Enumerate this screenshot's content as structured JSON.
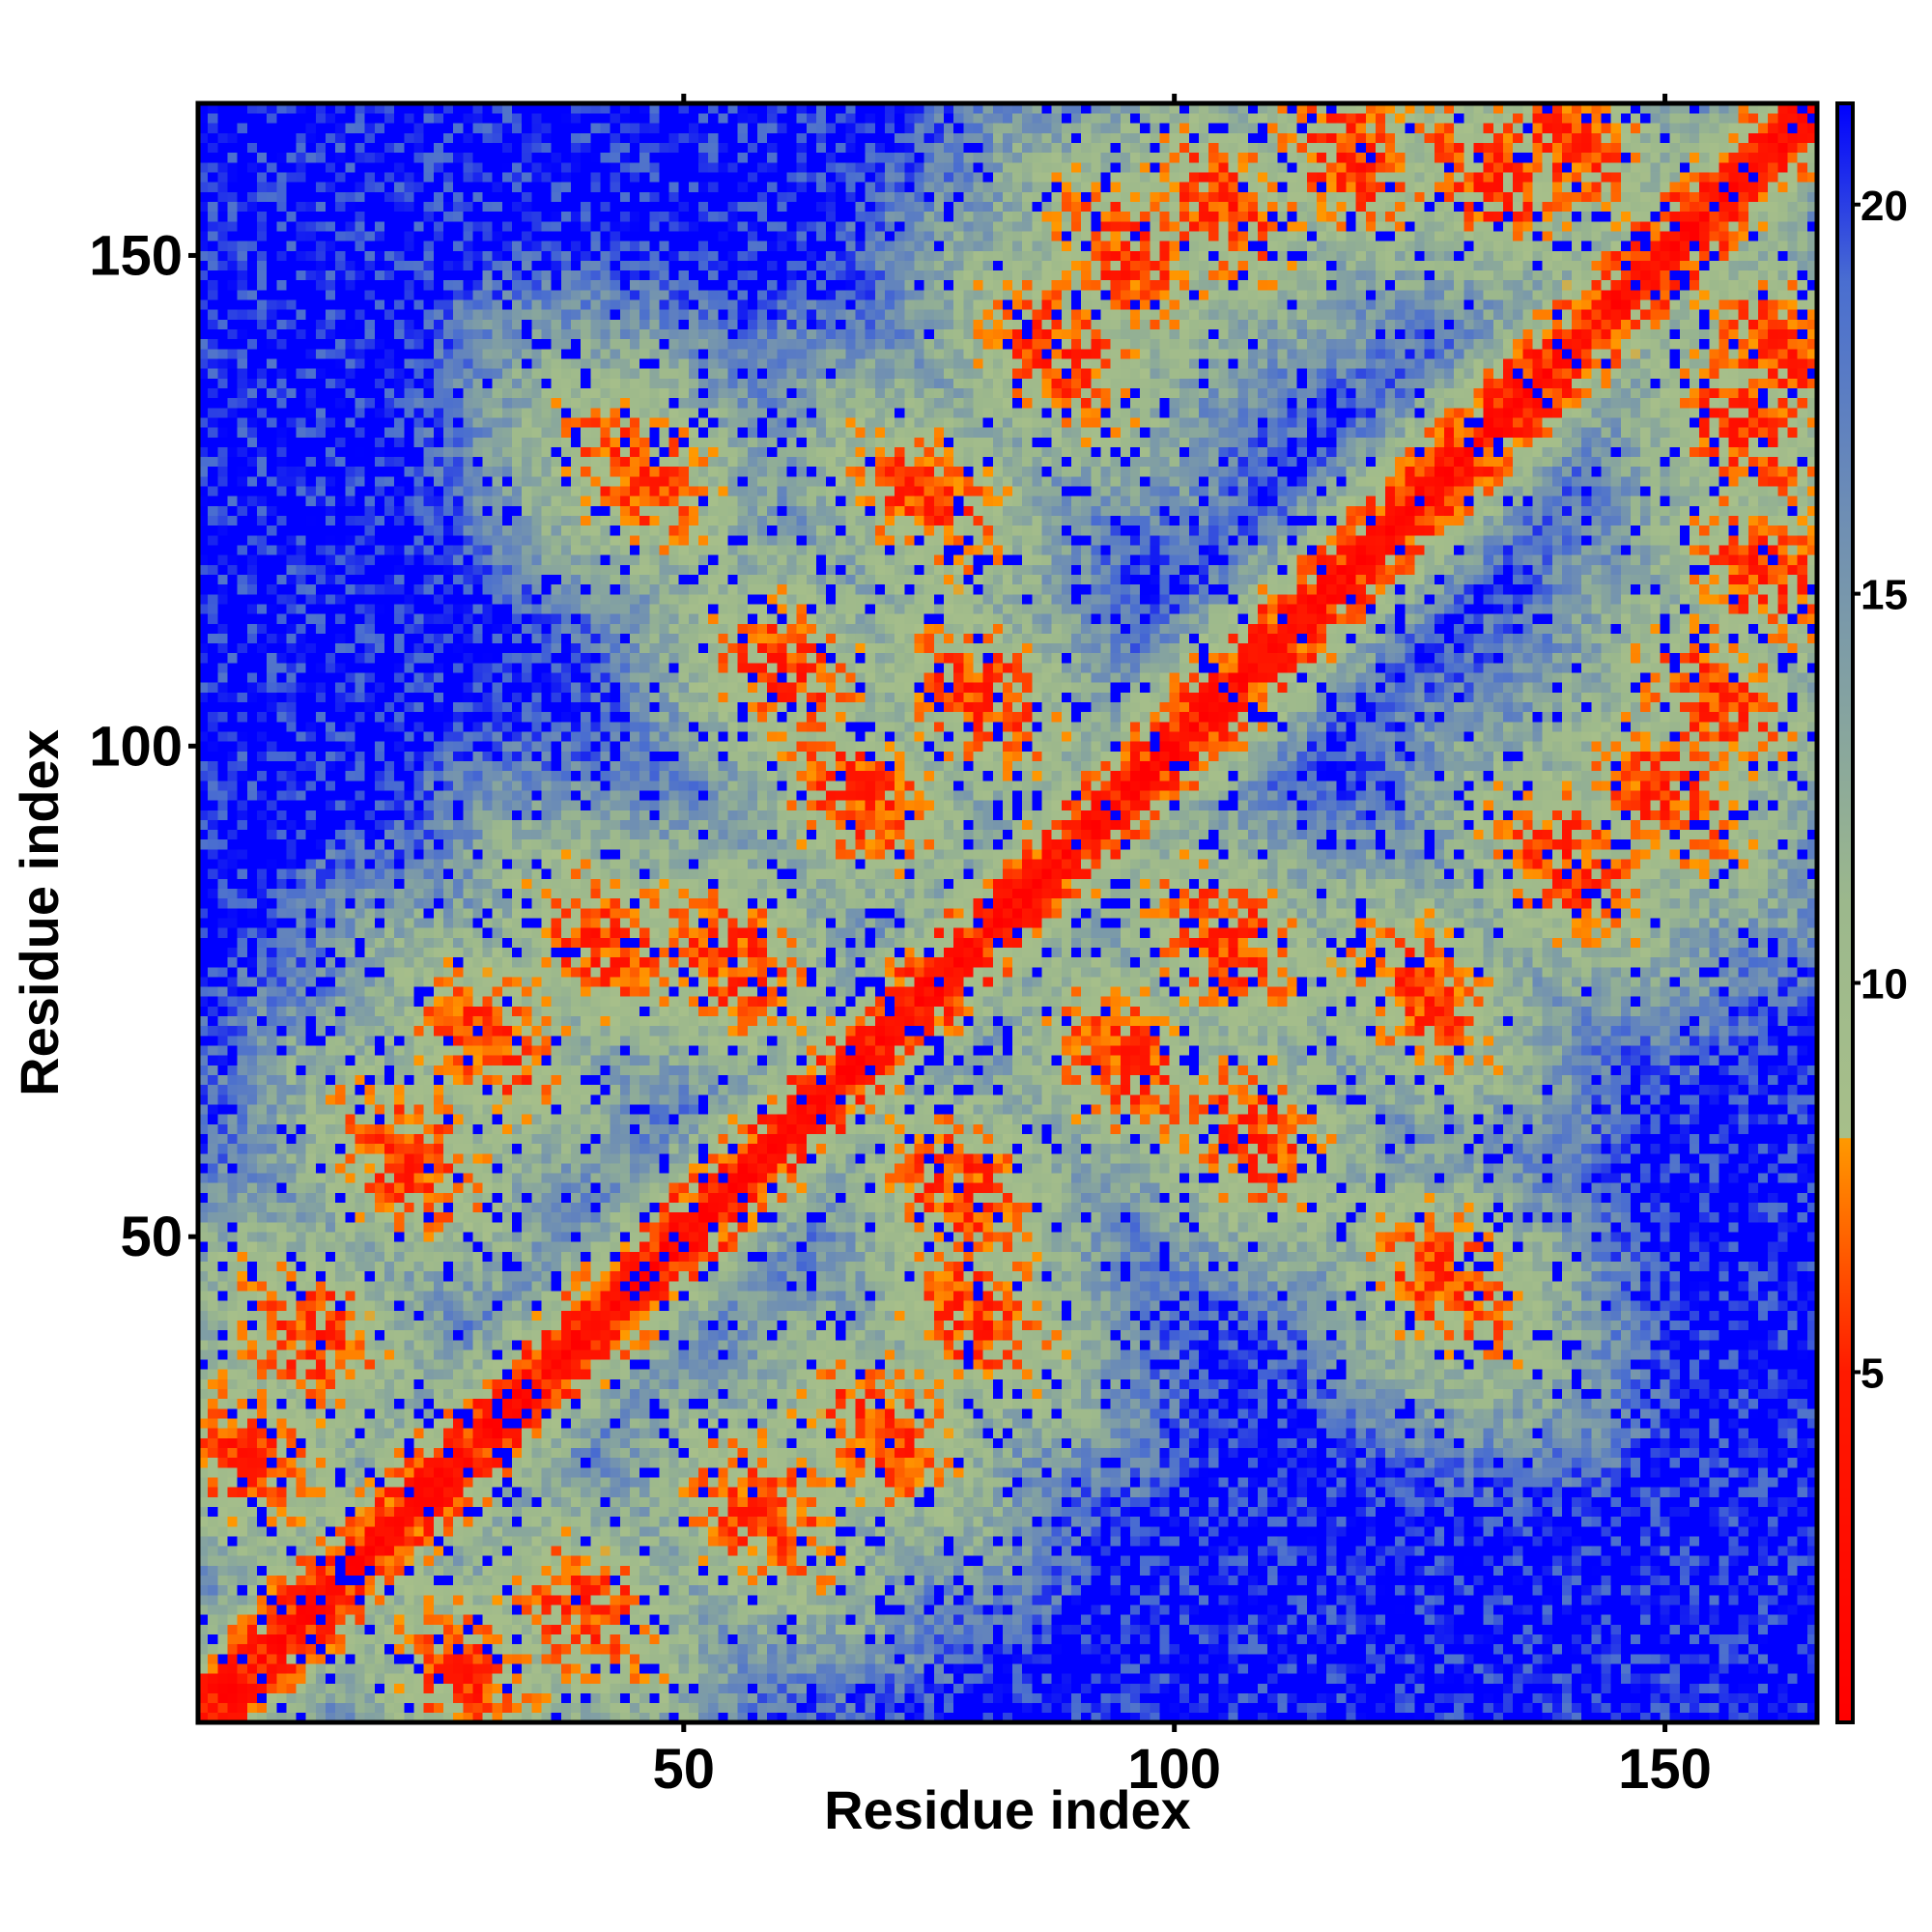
{
  "chart_data": {
    "type": "heatmap",
    "title": "",
    "xlabel": "Residue index",
    "ylabel": "Residue index",
    "n_residues": 165,
    "x_ticks": [
      50,
      100,
      150
    ],
    "y_ticks": [
      50,
      100,
      150
    ],
    "xlim": [
      1,
      165
    ],
    "ylim": [
      1,
      165
    ],
    "colorbar": {
      "ticks": [
        5,
        10,
        15,
        20
      ],
      "range": [
        0.5,
        21.3
      ],
      "color_stops": [
        {
          "value": 0.5,
          "color": "#ff0000"
        },
        {
          "value": 5.0,
          "color": "#ff1a00"
        },
        {
          "value": 8.0,
          "color": "#ff9900"
        },
        {
          "value": 8.01,
          "color": "#a7bf8a"
        },
        {
          "value": 11.0,
          "color": "#9cb88c"
        },
        {
          "value": 16.0,
          "color": "#6e8eb4"
        },
        {
          "value": 19.0,
          "color": "#4a6ed0"
        },
        {
          "value": 21.3,
          "color": "#0000ff"
        }
      ]
    },
    "value_semantics": "pairwise residue distance; symmetric matrix; small values red/orange near diagonal, large values blue",
    "contact_bands": [
      {
        "residue_a": 5,
        "residue_b": 28
      },
      {
        "residue_a": 12,
        "residue_b": 40
      },
      {
        "residue_a": 22,
        "residue_b": 58
      },
      {
        "residue_a": 30,
        "residue_b": 70
      },
      {
        "residue_a": 42,
        "residue_b": 80
      },
      {
        "residue_a": 45,
        "residue_b": 128
      },
      {
        "residue_a": 55,
        "residue_b": 78
      },
      {
        "residue_a": 60,
        "residue_b": 108
      },
      {
        "residue_a": 68,
        "residue_b": 95
      },
      {
        "residue_a": 75,
        "residue_b": 125
      },
      {
        "residue_a": 80,
        "residue_b": 105
      },
      {
        "residue_a": 88,
        "residue_b": 140
      },
      {
        "residue_a": 95,
        "residue_b": 150
      },
      {
        "residue_a": 105,
        "residue_b": 155
      },
      {
        "residue_a": 118,
        "residue_b": 160
      },
      {
        "residue_a": 132,
        "residue_b": 158
      },
      {
        "residue_a": 140,
        "residue_b": 162
      }
    ]
  }
}
